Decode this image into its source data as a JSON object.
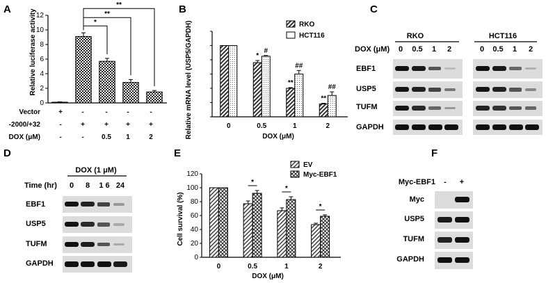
{
  "panels": {
    "A": {
      "label": "A",
      "ylabel": "Relative luciferase activity",
      "yticks": [
        0,
        2,
        4,
        6,
        8,
        10,
        12
      ],
      "row_labels": [
        "Vector",
        "-2000/+32",
        "DOX (μM)"
      ],
      "rows": [
        [
          "+",
          "-",
          "-",
          "-",
          "-"
        ],
        [
          "-",
          "+",
          "+",
          "+",
          "+"
        ],
        [
          "-",
          "-",
          "0.5",
          "1",
          "2"
        ]
      ],
      "significance": [
        "*",
        "**",
        "**"
      ]
    },
    "B": {
      "label": "B",
      "ylabel": "Relative mRNA level (USP5/GAPDH)",
      "xlabel": "DOX (μM)",
      "legend": [
        "RKO",
        "HCT116"
      ],
      "sig_rko": [
        "",
        "*",
        "**",
        "**"
      ],
      "sig_hct": [
        "",
        "#",
        "##",
        "##"
      ]
    },
    "C": {
      "label": "C",
      "cell_lines": [
        "RKO",
        "HCT116"
      ],
      "dose_label": "DOX (μM)",
      "doses": [
        "0",
        "0.5",
        "1",
        "2",
        "0",
        "0.5",
        "1",
        "2"
      ],
      "proteins": [
        "EBF1",
        "USP5",
        "TUFM",
        "GAPDH"
      ]
    },
    "D": {
      "label": "D",
      "header": "DOX (1 μM)",
      "time_label": "Time (hr)",
      "times": [
        "0",
        "8",
        "1 6",
        "24"
      ],
      "proteins": [
        "EBF1",
        "USP5",
        "TUFM",
        "GAPDH"
      ]
    },
    "E": {
      "label": "E",
      "ylabel": "Cell survival (%)",
      "xlabel": "DOX (μM)",
      "legend": [
        "EV",
        "Myc-EBF1"
      ],
      "significance": [
        "*",
        "*",
        "*"
      ]
    },
    "F": {
      "label": "F",
      "header": "Myc-EBF1",
      "states": [
        "-",
        "+"
      ],
      "proteins": [
        "Myc",
        "USP5",
        "TUFM",
        "GAPDH"
      ]
    }
  },
  "chart_data": [
    {
      "type": "bar",
      "panel": "A",
      "categories": [
        "Vector",
        "-2000/+32",
        "0.5",
        "1",
        "2"
      ],
      "values": [
        0.1,
        9.1,
        5.7,
        2.8,
        1.5
      ],
      "errors": [
        0.05,
        0.5,
        0.4,
        0.4,
        0.2
      ],
      "ylabel": "Relative luciferase activity",
      "ylim": [
        0,
        12
      ]
    },
    {
      "type": "bar",
      "panel": "B",
      "categories": [
        "0",
        "0.5",
        "1",
        "2"
      ],
      "series": [
        {
          "name": "RKO",
          "values": [
            1.0,
            0.76,
            0.4,
            0.18
          ],
          "errors": [
            0,
            0.03,
            0.01,
            0.01
          ]
        },
        {
          "name": "HCT116",
          "values": [
            1.0,
            0.85,
            0.6,
            0.3
          ],
          "errors": [
            0,
            0.01,
            0.05,
            0.05
          ]
        }
      ],
      "xlabel": "DOX (μM)",
      "ylabel": "Relative mRNA level (USP5/GAPDH)",
      "ylim": [
        0,
        1.2
      ]
    },
    {
      "type": "bar",
      "panel": "E",
      "categories": [
        "0",
        "0.5",
        "1",
        "2"
      ],
      "series": [
        {
          "name": "EV",
          "values": [
            100,
            77,
            67,
            47
          ],
          "errors": [
            0,
            4,
            4,
            2
          ]
        },
        {
          "name": "Myc-EBF1",
          "values": [
            100,
            92,
            83,
            59
          ],
          "errors": [
            0,
            4,
            4,
            2
          ]
        }
      ],
      "xlabel": "DOX (μM)",
      "ylabel": "Cell survival (%)",
      "ylim": [
        0,
        120
      ]
    }
  ]
}
